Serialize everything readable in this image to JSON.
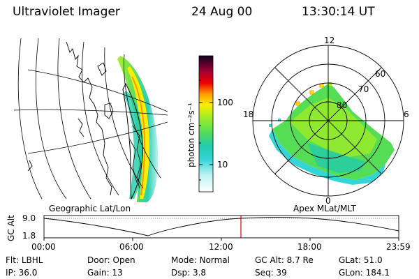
{
  "header": {
    "title": "Ultraviolet Imager",
    "date": "24 Aug 00",
    "time": "13:30:14 UT"
  },
  "colorbar": {
    "unit_label": "photon cm⁻²s⁻¹",
    "ticks": [
      "100",
      "10"
    ]
  },
  "polar": {
    "labels": {
      "top": "12",
      "left": "18",
      "right": "6",
      "bottom": "0",
      "r60": "60",
      "r70": "70",
      "r80": "80"
    }
  },
  "map": {
    "caption": "Geographic Lat/Lon"
  },
  "polar_caption": "Apex MLat/MLT",
  "timeline": {
    "ylabel": "GC Alt",
    "yticks": [
      "9.0",
      "1.8"
    ],
    "xticks": [
      "00:00",
      "06:00",
      "12:00",
      "18:00",
      "23:59"
    ],
    "marker_time_hours": 13.5
  },
  "status": {
    "flt": {
      "label": "Flt:",
      "value": "LBHL"
    },
    "ip": {
      "label": "IP:",
      "value": "36.0"
    },
    "door": {
      "label": "Door:",
      "value": "Open"
    },
    "gain": {
      "label": "Gain:",
      "value": "13"
    },
    "mode": {
      "label": "Mode:",
      "value": "Normal"
    },
    "dsp": {
      "label": "Dsp:",
      "value": "3.8"
    },
    "gcalt": {
      "label": "GC Alt:",
      "value": "8.7 Re"
    },
    "seq": {
      "label": "Seq:",
      "value": "39"
    },
    "glat": {
      "label": "GLat:",
      "value": "51.0"
    },
    "glon": {
      "label": "GLon:",
      "value": "184.1"
    }
  },
  "colors": {
    "marker": "#d00000"
  }
}
